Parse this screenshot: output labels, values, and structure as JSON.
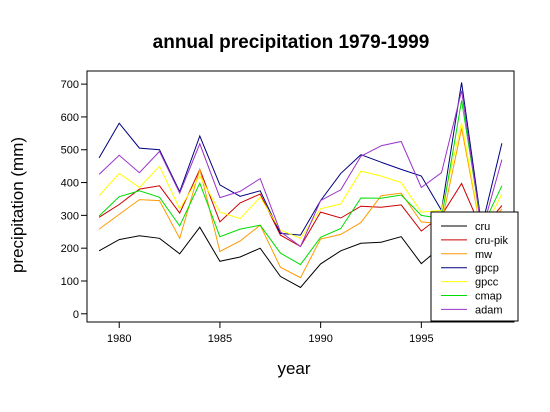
{
  "chart_data": {
    "type": "line",
    "title": "annual precipitation 1979-1999",
    "xlabel": "year",
    "ylabel": "precipitation (mm)",
    "xlim": [
      1978.4,
      1999.6
    ],
    "ylim": [
      -25,
      740
    ],
    "x_ticks": [
      1980,
      1985,
      1990,
      1995
    ],
    "y_ticks": [
      0,
      100,
      200,
      300,
      400,
      500,
      600,
      700
    ],
    "grid": false,
    "legend_position": "bottom-right",
    "x": [
      1979,
      1980,
      1981,
      1982,
      1983,
      1984,
      1985,
      1986,
      1987,
      1988,
      1989,
      1990,
      1991,
      1992,
      1993,
      1994,
      1995,
      1996,
      1997,
      1998,
      1999
    ],
    "series": [
      {
        "name": "cru",
        "color": "#000000",
        "values": [
          192,
          226,
          238,
          230,
          183,
          264,
          160,
          173,
          200,
          114,
          80,
          152,
          192,
          215,
          218,
          235,
          153,
          205,
          260,
          215,
          280
        ]
      },
      {
        "name": "cru-pik",
        "color": "#cc0000",
        "values": [
          294,
          333,
          380,
          390,
          307,
          440,
          280,
          338,
          365,
          240,
          205,
          310,
          292,
          328,
          325,
          332,
          252,
          300,
          397,
          255,
          330
        ]
      },
      {
        "name": "mw",
        "color": "#ff9900",
        "values": [
          258,
          303,
          348,
          345,
          230,
          440,
          190,
          222,
          270,
          142,
          110,
          228,
          242,
          278,
          360,
          368,
          280,
          275,
          565,
          240,
          320
        ]
      },
      {
        "name": "gpcp",
        "color": "#000080",
        "values": [
          475,
          581,
          505,
          500,
          372,
          542,
          393,
          358,
          375,
          245,
          240,
          345,
          428,
          485,
          462,
          440,
          420,
          315,
          705,
          265,
          520
        ]
      },
      {
        "name": "gpcc",
        "color": "#ffff00",
        "values": [
          360,
          428,
          385,
          450,
          320,
          420,
          310,
          290,
          355,
          255,
          230,
          320,
          335,
          435,
          420,
          400,
          310,
          315,
          582,
          245,
          365
        ]
      },
      {
        "name": "cmap",
        "color": "#00dd00",
        "values": [
          298,
          357,
          375,
          355,
          268,
          398,
          235,
          258,
          270,
          185,
          150,
          233,
          260,
          353,
          352,
          362,
          300,
          290,
          650,
          262,
          390
        ]
      },
      {
        "name": "adam",
        "color": "#9933cc",
        "values": [
          425,
          483,
          430,
          495,
          368,
          518,
          354,
          373,
          412,
          250,
          205,
          345,
          378,
          480,
          512,
          525,
          385,
          430,
          680,
          250,
          470
        ]
      }
    ]
  }
}
